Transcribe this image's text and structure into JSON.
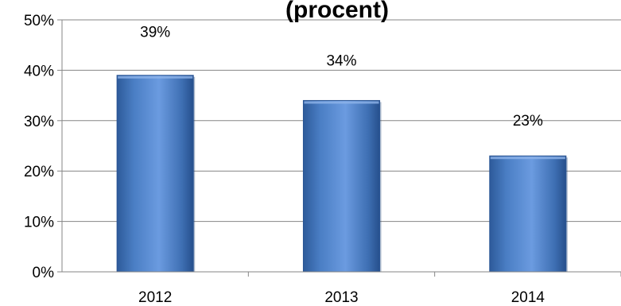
{
  "chart_data": {
    "type": "bar",
    "title": "(procent)",
    "categories": [
      "2012",
      "2013",
      "2014"
    ],
    "values": [
      39,
      34,
      23
    ],
    "data_labels": [
      "39%",
      "34%",
      "23%"
    ],
    "y_ticks": [
      0,
      10,
      20,
      30,
      40,
      50
    ],
    "y_tick_labels": [
      "0%",
      "10%",
      "20%",
      "30%",
      "40%",
      "50%"
    ],
    "ylim": [
      0,
      50
    ],
    "xlabel": "",
    "ylabel": "",
    "grid": true,
    "legend": "none",
    "bar_color": "#4a7ec4",
    "bar_color_dark": "#2a5594",
    "grid_color": "#868686"
  }
}
